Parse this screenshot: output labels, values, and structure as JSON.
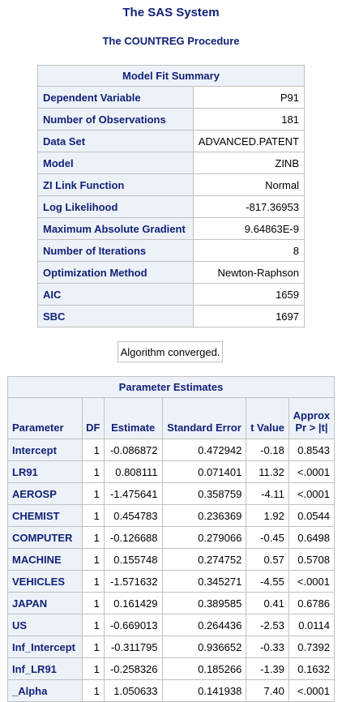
{
  "titles": {
    "system": "The SAS System",
    "procedure": "The COUNTREG Procedure"
  },
  "model_fit": {
    "header": "Model Fit Summary",
    "rows": [
      {
        "label": "Dependent Variable",
        "value": "P91"
      },
      {
        "label": "Number of Observations",
        "value": "181"
      },
      {
        "label": "Data Set",
        "value": "ADVANCED.PATENT"
      },
      {
        "label": "Model",
        "value": "ZINB"
      },
      {
        "label": "ZI Link Function",
        "value": "Normal"
      },
      {
        "label": "Log Likelihood",
        "value": "-817.36953"
      },
      {
        "label": "Maximum Absolute Gradient",
        "value": "9.64863E-9"
      },
      {
        "label": "Number of Iterations",
        "value": "8"
      },
      {
        "label": "Optimization Method",
        "value": "Newton-Raphson"
      },
      {
        "label": "AIC",
        "value": "1659"
      },
      {
        "label": "SBC",
        "value": "1697"
      }
    ]
  },
  "convergence_note": "Algorithm converged.",
  "parameter_estimates": {
    "header": "Parameter Estimates",
    "columns": {
      "parameter": "Parameter",
      "df": "DF",
      "estimate": "Estimate",
      "std_error": "Standard Error",
      "t_value": "t Value",
      "p_line1": "Approx",
      "p_line2": "Pr > |t|"
    },
    "rows": [
      {
        "parameter": "Intercept",
        "df": "1",
        "estimate": "-0.086872",
        "std_error": "0.472942",
        "t_value": "-0.18",
        "p": "0.8543"
      },
      {
        "parameter": "LR91",
        "df": "1",
        "estimate": "0.808111",
        "std_error": "0.071401",
        "t_value": "11.32",
        "p": "<.0001"
      },
      {
        "parameter": "AEROSP",
        "df": "1",
        "estimate": "-1.475641",
        "std_error": "0.358759",
        "t_value": "-4.11",
        "p": "<.0001"
      },
      {
        "parameter": "CHEMIST",
        "df": "1",
        "estimate": "0.454783",
        "std_error": "0.236369",
        "t_value": "1.92",
        "p": "0.0544"
      },
      {
        "parameter": "COMPUTER",
        "df": "1",
        "estimate": "-0.126688",
        "std_error": "0.279066",
        "t_value": "-0.45",
        "p": "0.6498"
      },
      {
        "parameter": "MACHINE",
        "df": "1",
        "estimate": "0.155748",
        "std_error": "0.274752",
        "t_value": "0.57",
        "p": "0.5708"
      },
      {
        "parameter": "VEHICLES",
        "df": "1",
        "estimate": "-1.571632",
        "std_error": "0.345271",
        "t_value": "-4.55",
        "p": "<.0001"
      },
      {
        "parameter": "JAPAN",
        "df": "1",
        "estimate": "0.161429",
        "std_error": "0.389585",
        "t_value": "0.41",
        "p": "0.6786"
      },
      {
        "parameter": "US",
        "df": "1",
        "estimate": "-0.669013",
        "std_error": "0.264436",
        "t_value": "-2.53",
        "p": "0.0114"
      },
      {
        "parameter": "Inf_Intercept",
        "df": "1",
        "estimate": "-0.311795",
        "std_error": "0.936652",
        "t_value": "-0.33",
        "p": "0.7392"
      },
      {
        "parameter": "Inf_LR91",
        "df": "1",
        "estimate": "-0.258326",
        "std_error": "0.185266",
        "t_value": "-1.39",
        "p": "0.1632"
      },
      {
        "parameter": "_Alpha",
        "df": "1",
        "estimate": "1.050633",
        "std_error": "0.141938",
        "t_value": "7.40",
        "p": "<.0001"
      }
    ]
  }
}
